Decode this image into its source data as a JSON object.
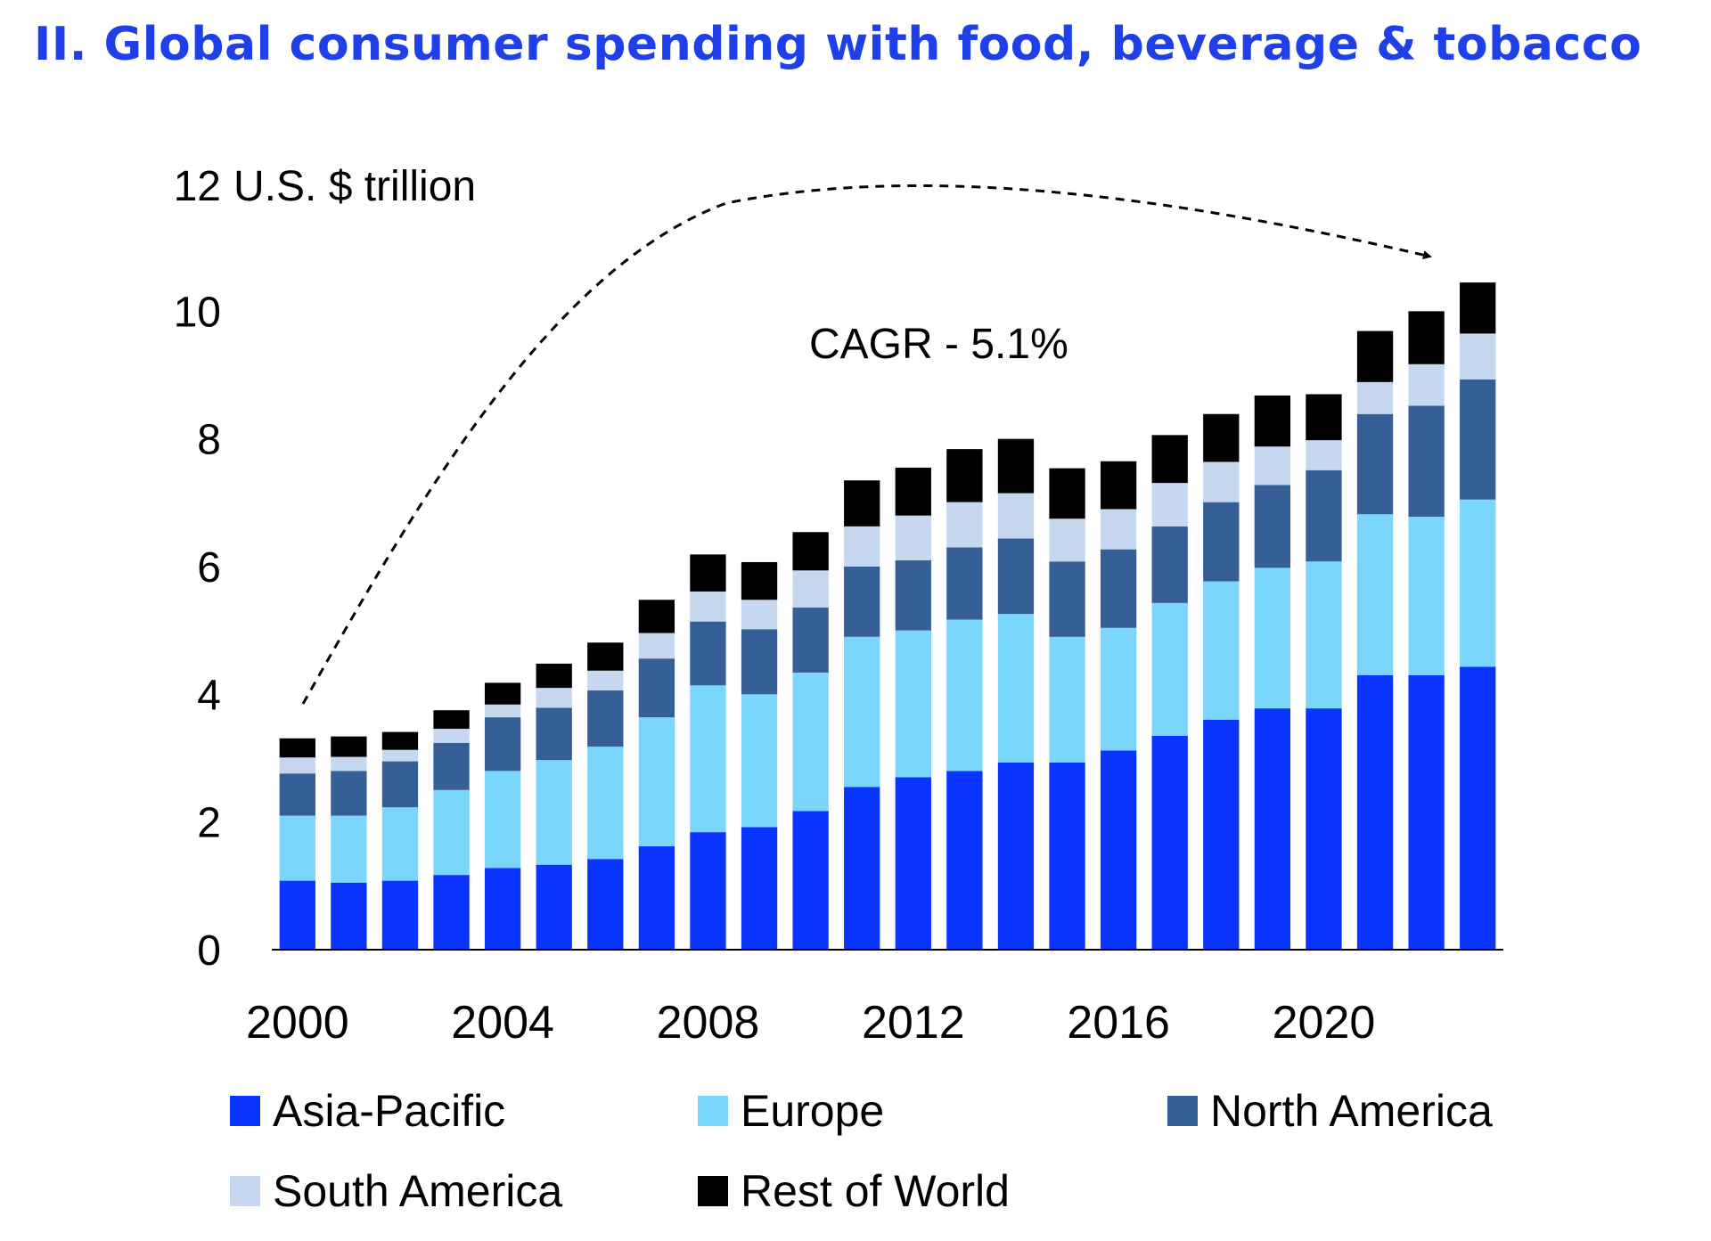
{
  "page": {
    "title": "II. Global consumer spending with food, beverage & tobacco"
  },
  "colors": {
    "title": "#1f3fe8",
    "axis": "#000000",
    "asia_pacific": "#0a34ff",
    "europe": "#7ad6fb",
    "north_america": "#355f96",
    "south_america": "#c6d7f0",
    "rest_of_world": "#000000"
  },
  "chart_data": {
    "type": "bar",
    "stacked": true,
    "title": "II. Global consumer spending with food, beverage & tobacco",
    "ylabel": "U.S. $ trillion",
    "ylim": [
      0,
      12
    ],
    "yticks": [
      0,
      2,
      4,
      6,
      8,
      10,
      12
    ],
    "xticks": [
      "2000",
      "2004",
      "2008",
      "2012",
      "2016",
      "2020"
    ],
    "categories": [
      "2000",
      "2001",
      "2002",
      "2003",
      "2004",
      "2005",
      "2006",
      "2007",
      "2008",
      "2009",
      "2010",
      "2011",
      "2012",
      "2013",
      "2014",
      "2015",
      "2016",
      "2017",
      "2018",
      "2019",
      "2020",
      "2021",
      "2022",
      "2023"
    ],
    "annotation": "CAGR - 5.1%",
    "legend_position": "bottom",
    "series": [
      {
        "name": "Asia-Pacific",
        "color_key": "asia_pacific",
        "values": [
          1.08,
          1.05,
          1.08,
          1.17,
          1.28,
          1.33,
          1.42,
          1.62,
          1.84,
          1.92,
          2.17,
          2.55,
          2.7,
          2.8,
          2.93,
          2.93,
          3.12,
          3.35,
          3.6,
          3.78,
          3.78,
          4.3,
          4.3,
          4.43
        ]
      },
      {
        "name": "Europe",
        "color_key": "europe",
        "values": [
          1.02,
          1.05,
          1.15,
          1.33,
          1.52,
          1.64,
          1.76,
          2.02,
          2.3,
          2.08,
          2.17,
          2.35,
          2.3,
          2.37,
          2.33,
          1.97,
          1.92,
          2.08,
          2.17,
          2.2,
          2.3,
          2.52,
          2.48,
          2.62
        ]
      },
      {
        "name": "North America",
        "color_key": "north_america",
        "values": [
          0.66,
          0.7,
          0.72,
          0.74,
          0.84,
          0.82,
          0.88,
          0.92,
          1.0,
          1.02,
          1.02,
          1.1,
          1.1,
          1.13,
          1.18,
          1.18,
          1.23,
          1.2,
          1.24,
          1.3,
          1.43,
          1.57,
          1.74,
          1.88
        ]
      },
      {
        "name": "South America",
        "color_key": "south_america",
        "values": [
          0.25,
          0.22,
          0.18,
          0.22,
          0.2,
          0.31,
          0.31,
          0.4,
          0.47,
          0.46,
          0.58,
          0.63,
          0.7,
          0.71,
          0.71,
          0.67,
          0.63,
          0.68,
          0.63,
          0.6,
          0.47,
          0.5,
          0.65,
          0.72
        ]
      },
      {
        "name": "Rest of World",
        "color_key": "rest_of_world",
        "values": [
          0.3,
          0.32,
          0.28,
          0.29,
          0.34,
          0.38,
          0.44,
          0.52,
          0.58,
          0.59,
          0.6,
          0.72,
          0.75,
          0.83,
          0.85,
          0.79,
          0.75,
          0.75,
          0.75,
          0.8,
          0.72,
          0.8,
          0.83,
          0.8
        ]
      }
    ]
  }
}
